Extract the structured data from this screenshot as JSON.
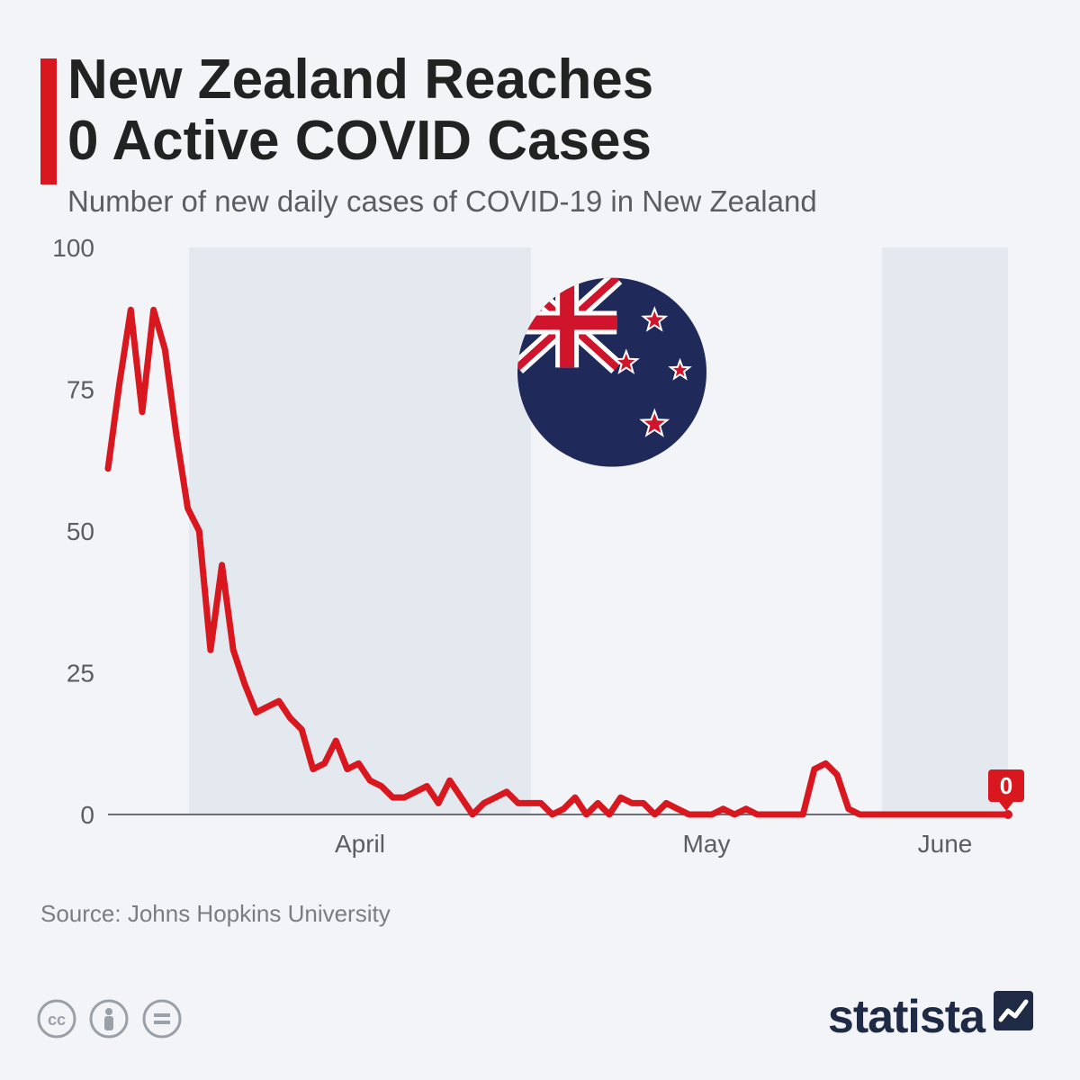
{
  "header": {
    "title_line1": "New Zealand Reaches",
    "title_line2": "0 Active COVID Cases",
    "subtitle": "Number of new daily cases of COVID-19 in New Zealand",
    "accent_color": "#d9171f"
  },
  "chart": {
    "type": "line",
    "background_color": "#f2f4f8",
    "alt_band_color": "#e4e8ef",
    "zero_line_color": "#6b6e74",
    "axis_text_color": "#5a5d63",
    "line_color": "#d9171f",
    "line_width": 7,
    "y": {
      "min": 0,
      "max": 100,
      "ticks": [
        0,
        25,
        50,
        75,
        100
      ],
      "tick_fontsize": 28
    },
    "x": {
      "labels": [
        "April",
        "May",
        "June"
      ],
      "label_fontsize": 28,
      "days_total": 80
    },
    "end_marker": {
      "value": 0,
      "label": "0",
      "bg_color": "#d9171f",
      "text_color": "#ffffff",
      "fontsize": 26
    },
    "values": [
      61,
      76,
      89,
      71,
      89,
      82,
      67,
      54,
      50,
      29,
      44,
      29,
      23,
      18,
      19,
      20,
      17,
      15,
      8,
      9,
      13,
      8,
      9,
      6,
      5,
      3,
      3,
      4,
      5,
      2,
      6,
      3,
      0,
      2,
      3,
      4,
      2,
      2,
      2,
      0,
      1,
      3,
      0,
      2,
      0,
      3,
      2,
      2,
      0,
      2,
      1,
      0,
      0,
      0,
      1,
      0,
      1,
      0,
      0,
      0,
      0,
      0,
      8,
      9,
      7,
      1,
      0,
      0,
      0,
      0,
      0,
      0,
      0,
      0,
      0,
      0,
      0,
      0,
      0,
      0
    ],
    "flag": {
      "bg_color": "#1f2a5a",
      "cross_red": "#cf142b",
      "cross_white": "#ffffff",
      "star_color": "#cf142b",
      "star_outline": "#ffffff"
    }
  },
  "source": {
    "prefix": "Source: ",
    "name": "Johns Hopkins University"
  },
  "footer": {
    "brand": "statista",
    "brand_color": "#1f2b44",
    "icon_color": "#9aa0a8"
  }
}
